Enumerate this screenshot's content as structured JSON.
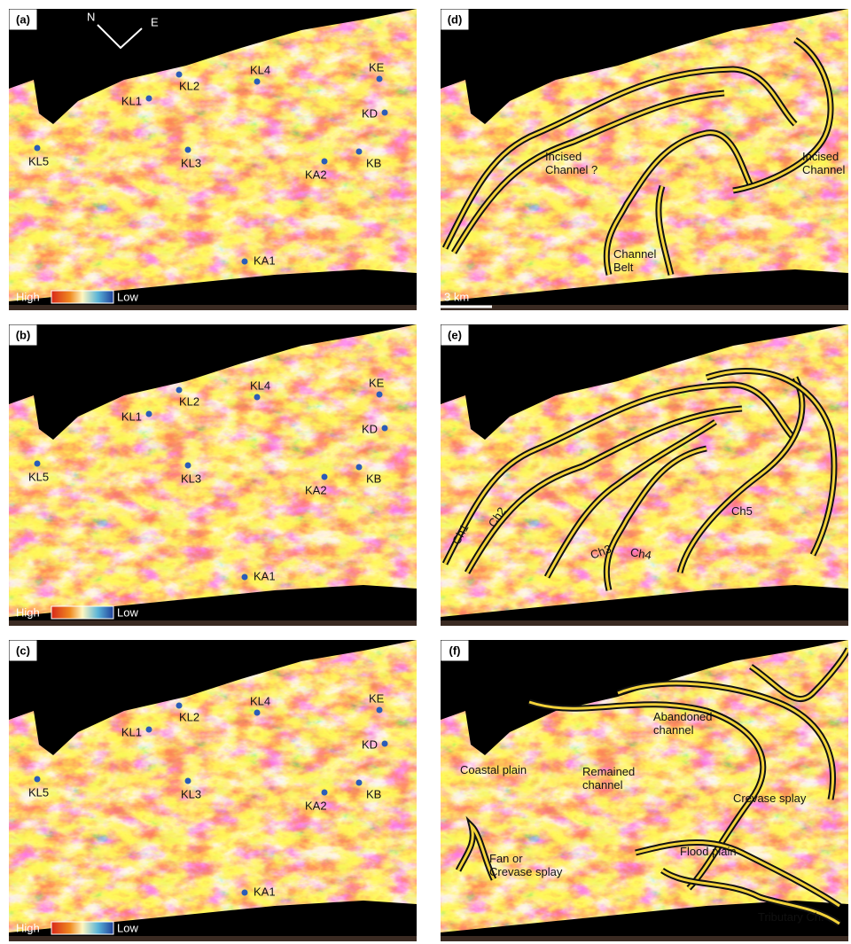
{
  "panels": [
    {
      "label": "(a)",
      "compass": {
        "n": "N",
        "e": "E"
      },
      "wells": [
        "KL1",
        "KL2",
        "KL3",
        "KL4",
        "KL5",
        "KA1",
        "KA2",
        "KB",
        "KD",
        "KE"
      ],
      "legend": {
        "high": "High",
        "low": "Low"
      }
    },
    {
      "label": "(d)",
      "annotations": [
        {
          "text": [
            "Incised",
            "Channel ?"
          ]
        },
        {
          "text": [
            "Incised",
            "Channel"
          ]
        },
        {
          "text": [
            "Channel",
            "Belt"
          ]
        }
      ],
      "scale": "3 km"
    },
    {
      "label": "(b)",
      "wells": [
        "KL1",
        "KL2",
        "KL3",
        "KL4",
        "KL5",
        "KA1",
        "KA2",
        "KB",
        "KD",
        "KE"
      ],
      "legend": {
        "high": "High",
        "low": "Low"
      }
    },
    {
      "label": "(e)",
      "annotations": [
        {
          "text": [
            "Ch1"
          ]
        },
        {
          "text": [
            "Ch2"
          ]
        },
        {
          "text": [
            "Ch3"
          ]
        },
        {
          "text": [
            "Ch4"
          ]
        },
        {
          "text": [
            "Ch5"
          ]
        }
      ]
    },
    {
      "label": "(c)",
      "wells": [
        "KL1",
        "KL2",
        "KL3",
        "KL4",
        "KL5",
        "KA1",
        "KA2",
        "KB",
        "KD",
        "KE"
      ],
      "legend": {
        "high": "High",
        "low": "Low"
      }
    },
    {
      "label": "(f)",
      "annotations": [
        {
          "text": [
            "Abandoned",
            "channel"
          ]
        },
        {
          "text": [
            "Coastal plain"
          ]
        },
        {
          "text": [
            "Remained",
            "channel"
          ]
        },
        {
          "text": [
            "Crevase splay"
          ]
        },
        {
          "text": [
            "Fan or",
            "Crevase splay"
          ]
        },
        {
          "text": [
            "Flood plain"
          ]
        },
        {
          "text": [
            "Tributary Ch."
          ]
        }
      ]
    }
  ]
}
